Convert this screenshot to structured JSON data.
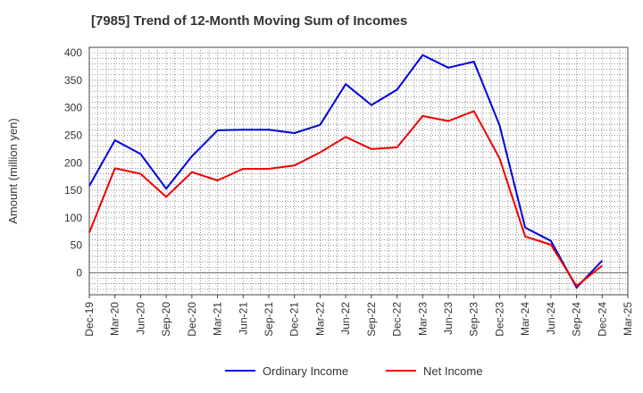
{
  "chart_data": {
    "type": "line",
    "title": "[7985]  Trend of 12-Month Moving Sum of Incomes",
    "xlabel": "",
    "ylabel": "Amount (million yen)",
    "ylim": [
      -40,
      410
    ],
    "yticks": [
      0,
      50,
      100,
      150,
      200,
      250,
      300,
      350,
      400
    ],
    "x_tick_labels": [
      "Dec-19",
      "Mar-20",
      "Jun-20",
      "Sep-20",
      "Dec-20",
      "Mar-21",
      "Jun-21",
      "Sep-21",
      "Dec-21",
      "Mar-22",
      "Jun-22",
      "Sep-22",
      "Dec-22",
      "Mar-23",
      "Jun-23",
      "Sep-23",
      "Dec-23",
      "Mar-24",
      "Jun-24",
      "Sep-24",
      "Dec-24",
      "Mar-25"
    ],
    "grid": true,
    "legend_position": "bottom",
    "series": [
      {
        "name": "Ordinary Income",
        "color": "#0000dd",
        "values": [
          158,
          241,
          216,
          153,
          212,
          259,
          260,
          260,
          254,
          269,
          343,
          305,
          333,
          396,
          373,
          384,
          268,
          82,
          58,
          -27,
          22
        ]
      },
      {
        "name": "Net Income",
        "color": "#ee0000",
        "values": [
          73,
          190,
          180,
          138,
          183,
          168,
          189,
          189,
          195,
          219,
          247,
          225,
          228,
          285,
          276,
          294,
          208,
          66,
          51,
          -24,
          13
        ]
      }
    ]
  }
}
